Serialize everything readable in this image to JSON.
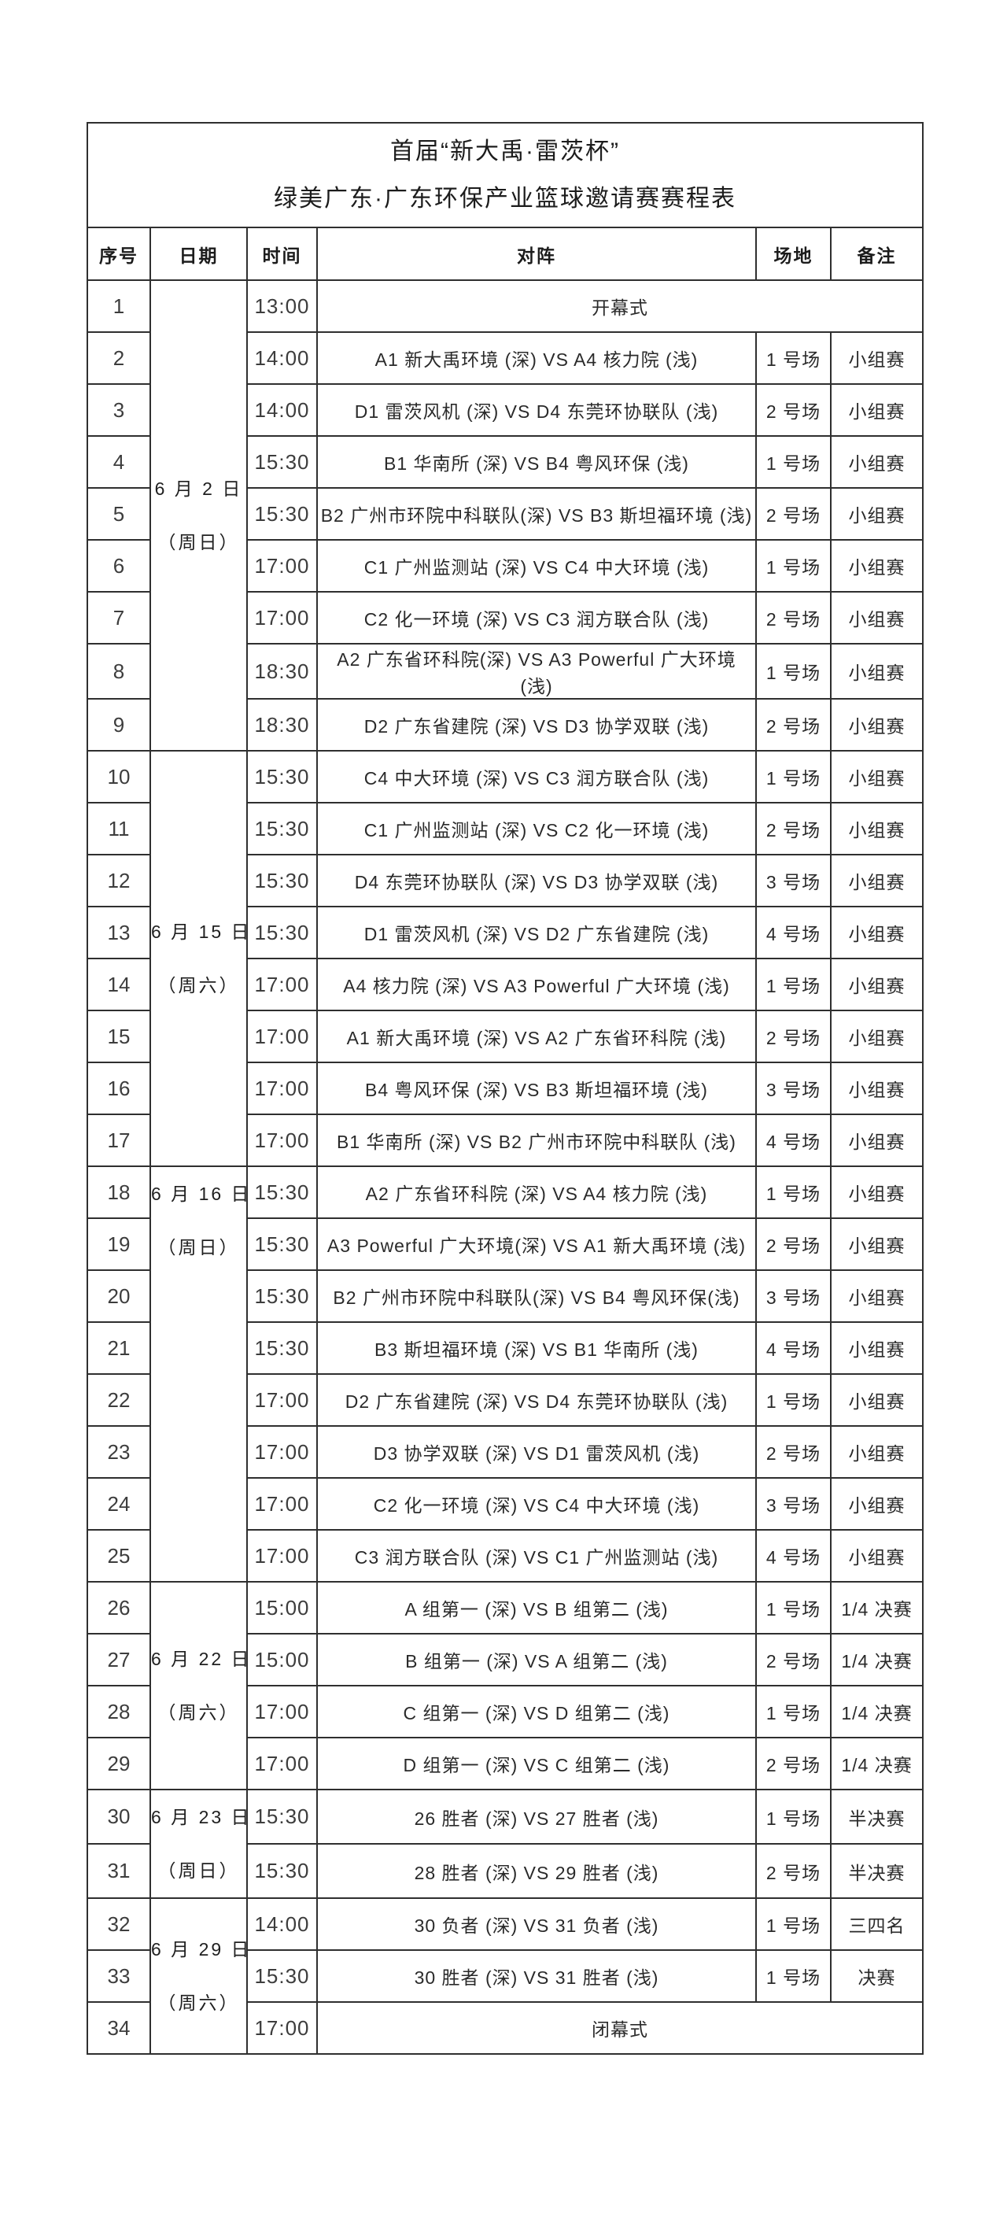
{
  "title": {
    "line1": "首届“新大禹·雷茨杯”",
    "line2": "绿美广东·广东环保产业篮球邀请赛赛程表"
  },
  "header": {
    "seq": "序号",
    "date": "日期",
    "time": "时间",
    "matchup": "对阵",
    "venue": "场地",
    "remark": "备注"
  },
  "date_groups": [
    {
      "start": 1,
      "span": 9,
      "date": "6 月 2 日",
      "week": "（周日）",
      "align": "mid"
    },
    {
      "start": 10,
      "span": 8,
      "date": "6 月 15 日",
      "week": "（周六）",
      "align": "mid"
    },
    {
      "start": 18,
      "span": 8,
      "date": "6 月 16 日",
      "week": "（周日）",
      "align": "top"
    },
    {
      "start": 26,
      "span": 4,
      "date": "6 月 22 日",
      "week": "（周六）",
      "align": "mid"
    },
    {
      "start": 30,
      "span": 2,
      "date": "6 月 23 日",
      "week": "（周日）",
      "align": "mid"
    },
    {
      "start": 32,
      "span": 3,
      "date": "6 月 29 日",
      "week": "（周六）",
      "align": "mid"
    }
  ],
  "rows": [
    {
      "seq": "1",
      "time": "13:00",
      "matchup": "开幕式",
      "venue": "",
      "remark": "",
      "full": true
    },
    {
      "seq": "2",
      "time": "14:00",
      "matchup": "A1 新大禹环境 (深) VS A4 核力院 (浅)",
      "venue": "1 号场",
      "remark": "小组赛",
      "full": false
    },
    {
      "seq": "3",
      "time": "14:00",
      "matchup": "D1 雷茨风机 (深) VS D4 东莞环协联队 (浅)",
      "venue": "2 号场",
      "remark": "小组赛",
      "full": false
    },
    {
      "seq": "4",
      "time": "15:30",
      "matchup": "B1 华南所 (深) VS B4 粤风环保 (浅)",
      "venue": "1 号场",
      "remark": "小组赛",
      "full": false
    },
    {
      "seq": "5",
      "time": "15:30",
      "matchup": "B2 广州市环院中科联队(深) VS B3 斯坦福环境 (浅)",
      "venue": "2 号场",
      "remark": "小组赛",
      "full": false
    },
    {
      "seq": "6",
      "time": "17:00",
      "matchup": "C1 广州监测站 (深) VS C4 中大环境 (浅)",
      "venue": "1 号场",
      "remark": "小组赛",
      "full": false
    },
    {
      "seq": "7",
      "time": "17:00",
      "matchup": "C2 化一环境 (深) VS C3 润方联合队 (浅)",
      "venue": "2 号场",
      "remark": "小组赛",
      "full": false
    },
    {
      "seq": "8",
      "time": "18:30",
      "matchup": "A2 广东省环科院(深) VS A3 Powerful 广大环境 (浅)",
      "venue": "1 号场",
      "remark": "小组赛",
      "full": false
    },
    {
      "seq": "9",
      "time": "18:30",
      "matchup": "D2 广东省建院 (深) VS D3 协学双联 (浅)",
      "venue": "2 号场",
      "remark": "小组赛",
      "full": false
    },
    {
      "seq": "10",
      "time": "15:30",
      "matchup": "C4 中大环境 (深) VS C3 润方联合队 (浅)",
      "venue": "1 号场",
      "remark": "小组赛",
      "full": false
    },
    {
      "seq": "11",
      "time": "15:30",
      "matchup": "C1 广州监测站 (深) VS C2 化一环境 (浅)",
      "venue": "2 号场",
      "remark": "小组赛",
      "full": false
    },
    {
      "seq": "12",
      "time": "15:30",
      "matchup": "D4 东莞环协联队 (深) VS D3 协学双联 (浅)",
      "venue": "3 号场",
      "remark": "小组赛",
      "full": false
    },
    {
      "seq": "13",
      "time": "15:30",
      "matchup": "D1 雷茨风机 (深) VS D2 广东省建院 (浅)",
      "venue": "4 号场",
      "remark": "小组赛",
      "full": false
    },
    {
      "seq": "14",
      "time": "17:00",
      "matchup": "A4 核力院 (深) VS A3 Powerful 广大环境 (浅)",
      "venue": "1 号场",
      "remark": "小组赛",
      "full": false
    },
    {
      "seq": "15",
      "time": "17:00",
      "matchup": "A1 新大禹环境 (深) VS A2 广东省环科院 (浅)",
      "venue": "2 号场",
      "remark": "小组赛",
      "full": false
    },
    {
      "seq": "16",
      "time": "17:00",
      "matchup": "B4 粤风环保 (深) VS B3 斯坦福环境 (浅)",
      "venue": "3 号场",
      "remark": "小组赛",
      "full": false
    },
    {
      "seq": "17",
      "time": "17:00",
      "matchup": "B1 华南所 (深) VS B2 广州市环院中科联队 (浅)",
      "venue": "4 号场",
      "remark": "小组赛",
      "full": false
    },
    {
      "seq": "18",
      "time": "15:30",
      "matchup": "A2 广东省环科院 (深) VS A4 核力院 (浅)",
      "venue": "1 号场",
      "remark": "小组赛",
      "full": false
    },
    {
      "seq": "19",
      "time": "15:30",
      "matchup": "A3 Powerful 广大环境(深) VS A1 新大禹环境 (浅)",
      "venue": "2 号场",
      "remark": "小组赛",
      "full": false
    },
    {
      "seq": "20",
      "time": "15:30",
      "matchup": "B2 广州市环院中科联队(深) VS B4 粤风环保(浅)",
      "venue": "3 号场",
      "remark": "小组赛",
      "full": false
    },
    {
      "seq": "21",
      "time": "15:30",
      "matchup": "B3 斯坦福环境 (深) VS B1 华南所 (浅)",
      "venue": "4 号场",
      "remark": "小组赛",
      "full": false
    },
    {
      "seq": "22",
      "time": "17:00",
      "matchup": "D2 广东省建院 (深) VS D4 东莞环协联队 (浅)",
      "venue": "1 号场",
      "remark": "小组赛",
      "full": false
    },
    {
      "seq": "23",
      "time": "17:00",
      "matchup": "D3 协学双联 (深) VS D1 雷茨风机 (浅)",
      "venue": "2 号场",
      "remark": "小组赛",
      "full": false
    },
    {
      "seq": "24",
      "time": "17:00",
      "matchup": "C2 化一环境 (深) VS C4 中大环境 (浅)",
      "venue": "3 号场",
      "remark": "小组赛",
      "full": false
    },
    {
      "seq": "25",
      "time": "17:00",
      "matchup": "C3 润方联合队 (深) VS C1 广州监测站 (浅)",
      "venue": "4 号场",
      "remark": "小组赛",
      "full": false
    },
    {
      "seq": "26",
      "time": "15:00",
      "matchup": "A 组第一 (深) VS B 组第二 (浅)",
      "venue": "1 号场",
      "remark": "1/4 决赛",
      "full": false
    },
    {
      "seq": "27",
      "time": "15:00",
      "matchup": "B 组第一 (深) VS A 组第二 (浅)",
      "venue": "2 号场",
      "remark": "1/4 决赛",
      "full": false
    },
    {
      "seq": "28",
      "time": "17:00",
      "matchup": "C 组第一 (深) VS D 组第二 (浅)",
      "venue": "1 号场",
      "remark": "1/4 决赛",
      "full": false
    },
    {
      "seq": "29",
      "time": "17:00",
      "matchup": "D 组第一 (深) VS C 组第二 (浅)",
      "venue": "2 号场",
      "remark": "1/4 决赛",
      "full": false
    },
    {
      "seq": "30",
      "time": "15:30",
      "matchup": "26 胜者 (深) VS 27 胜者 (浅)",
      "venue": "1 号场",
      "remark": "半决赛",
      "full": false
    },
    {
      "seq": "31",
      "time": "15:30",
      "matchup": "28 胜者 (深) VS 29 胜者 (浅)",
      "venue": "2 号场",
      "remark": "半决赛",
      "full": false
    },
    {
      "seq": "32",
      "time": "14:00",
      "matchup": "30 负者 (深) VS 31 负者 (浅)",
      "venue": "1 号场",
      "remark": "三四名",
      "full": false
    },
    {
      "seq": "33",
      "time": "15:30",
      "matchup": "30 胜者 (深) VS 31 胜者 (浅)",
      "venue": "1 号场",
      "remark": "决赛",
      "full": false
    },
    {
      "seq": "34",
      "time": "17:00",
      "matchup": "闭幕式",
      "venue": "",
      "remark": "",
      "full": true
    }
  ]
}
